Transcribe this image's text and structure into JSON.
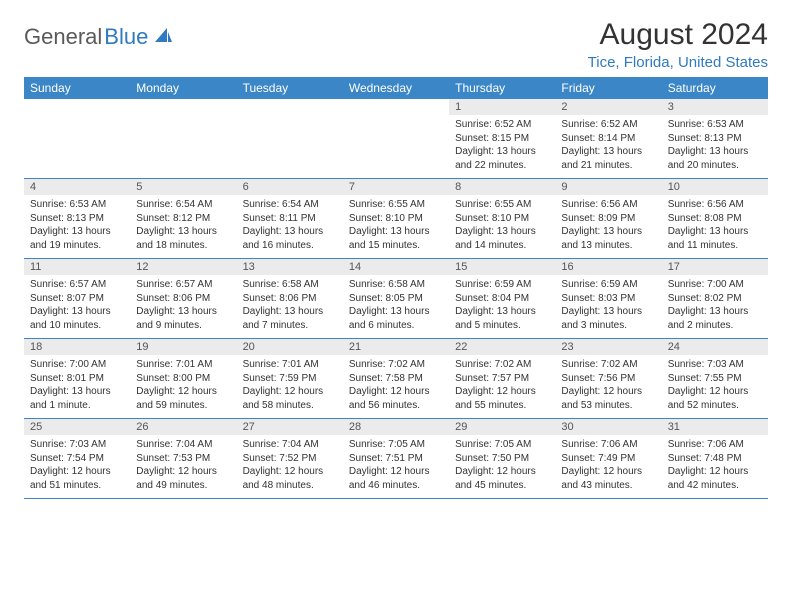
{
  "logo": {
    "text1": "General",
    "text2": "Blue"
  },
  "title": "August 2024",
  "location": "Tice, Florida, United States",
  "colors": {
    "header_bg": "#3b86c6",
    "header_text": "#ffffff",
    "accent": "#2f7ac0",
    "daynum_bg": "#ebebeb",
    "body_text": "#333333",
    "logo_gray": "#5a5a5a"
  },
  "weekdays": [
    "Sunday",
    "Monday",
    "Tuesday",
    "Wednesday",
    "Thursday",
    "Friday",
    "Saturday"
  ],
  "weeks": [
    [
      null,
      null,
      null,
      null,
      {
        "d": "1",
        "sr": "Sunrise: 6:52 AM",
        "ss": "Sunset: 8:15 PM",
        "dl1": "Daylight: 13 hours",
        "dl2": "and 22 minutes."
      },
      {
        "d": "2",
        "sr": "Sunrise: 6:52 AM",
        "ss": "Sunset: 8:14 PM",
        "dl1": "Daylight: 13 hours",
        "dl2": "and 21 minutes."
      },
      {
        "d": "3",
        "sr": "Sunrise: 6:53 AM",
        "ss": "Sunset: 8:13 PM",
        "dl1": "Daylight: 13 hours",
        "dl2": "and 20 minutes."
      }
    ],
    [
      {
        "d": "4",
        "sr": "Sunrise: 6:53 AM",
        "ss": "Sunset: 8:13 PM",
        "dl1": "Daylight: 13 hours",
        "dl2": "and 19 minutes."
      },
      {
        "d": "5",
        "sr": "Sunrise: 6:54 AM",
        "ss": "Sunset: 8:12 PM",
        "dl1": "Daylight: 13 hours",
        "dl2": "and 18 minutes."
      },
      {
        "d": "6",
        "sr": "Sunrise: 6:54 AM",
        "ss": "Sunset: 8:11 PM",
        "dl1": "Daylight: 13 hours",
        "dl2": "and 16 minutes."
      },
      {
        "d": "7",
        "sr": "Sunrise: 6:55 AM",
        "ss": "Sunset: 8:10 PM",
        "dl1": "Daylight: 13 hours",
        "dl2": "and 15 minutes."
      },
      {
        "d": "8",
        "sr": "Sunrise: 6:55 AM",
        "ss": "Sunset: 8:10 PM",
        "dl1": "Daylight: 13 hours",
        "dl2": "and 14 minutes."
      },
      {
        "d": "9",
        "sr": "Sunrise: 6:56 AM",
        "ss": "Sunset: 8:09 PM",
        "dl1": "Daylight: 13 hours",
        "dl2": "and 13 minutes."
      },
      {
        "d": "10",
        "sr": "Sunrise: 6:56 AM",
        "ss": "Sunset: 8:08 PM",
        "dl1": "Daylight: 13 hours",
        "dl2": "and 11 minutes."
      }
    ],
    [
      {
        "d": "11",
        "sr": "Sunrise: 6:57 AM",
        "ss": "Sunset: 8:07 PM",
        "dl1": "Daylight: 13 hours",
        "dl2": "and 10 minutes."
      },
      {
        "d": "12",
        "sr": "Sunrise: 6:57 AM",
        "ss": "Sunset: 8:06 PM",
        "dl1": "Daylight: 13 hours",
        "dl2": "and 9 minutes."
      },
      {
        "d": "13",
        "sr": "Sunrise: 6:58 AM",
        "ss": "Sunset: 8:06 PM",
        "dl1": "Daylight: 13 hours",
        "dl2": "and 7 minutes."
      },
      {
        "d": "14",
        "sr": "Sunrise: 6:58 AM",
        "ss": "Sunset: 8:05 PM",
        "dl1": "Daylight: 13 hours",
        "dl2": "and 6 minutes."
      },
      {
        "d": "15",
        "sr": "Sunrise: 6:59 AM",
        "ss": "Sunset: 8:04 PM",
        "dl1": "Daylight: 13 hours",
        "dl2": "and 5 minutes."
      },
      {
        "d": "16",
        "sr": "Sunrise: 6:59 AM",
        "ss": "Sunset: 8:03 PM",
        "dl1": "Daylight: 13 hours",
        "dl2": "and 3 minutes."
      },
      {
        "d": "17",
        "sr": "Sunrise: 7:00 AM",
        "ss": "Sunset: 8:02 PM",
        "dl1": "Daylight: 13 hours",
        "dl2": "and 2 minutes."
      }
    ],
    [
      {
        "d": "18",
        "sr": "Sunrise: 7:00 AM",
        "ss": "Sunset: 8:01 PM",
        "dl1": "Daylight: 13 hours",
        "dl2": "and 1 minute."
      },
      {
        "d": "19",
        "sr": "Sunrise: 7:01 AM",
        "ss": "Sunset: 8:00 PM",
        "dl1": "Daylight: 12 hours",
        "dl2": "and 59 minutes."
      },
      {
        "d": "20",
        "sr": "Sunrise: 7:01 AM",
        "ss": "Sunset: 7:59 PM",
        "dl1": "Daylight: 12 hours",
        "dl2": "and 58 minutes."
      },
      {
        "d": "21",
        "sr": "Sunrise: 7:02 AM",
        "ss": "Sunset: 7:58 PM",
        "dl1": "Daylight: 12 hours",
        "dl2": "and 56 minutes."
      },
      {
        "d": "22",
        "sr": "Sunrise: 7:02 AM",
        "ss": "Sunset: 7:57 PM",
        "dl1": "Daylight: 12 hours",
        "dl2": "and 55 minutes."
      },
      {
        "d": "23",
        "sr": "Sunrise: 7:02 AM",
        "ss": "Sunset: 7:56 PM",
        "dl1": "Daylight: 12 hours",
        "dl2": "and 53 minutes."
      },
      {
        "d": "24",
        "sr": "Sunrise: 7:03 AM",
        "ss": "Sunset: 7:55 PM",
        "dl1": "Daylight: 12 hours",
        "dl2": "and 52 minutes."
      }
    ],
    [
      {
        "d": "25",
        "sr": "Sunrise: 7:03 AM",
        "ss": "Sunset: 7:54 PM",
        "dl1": "Daylight: 12 hours",
        "dl2": "and 51 minutes."
      },
      {
        "d": "26",
        "sr": "Sunrise: 7:04 AM",
        "ss": "Sunset: 7:53 PM",
        "dl1": "Daylight: 12 hours",
        "dl2": "and 49 minutes."
      },
      {
        "d": "27",
        "sr": "Sunrise: 7:04 AM",
        "ss": "Sunset: 7:52 PM",
        "dl1": "Daylight: 12 hours",
        "dl2": "and 48 minutes."
      },
      {
        "d": "28",
        "sr": "Sunrise: 7:05 AM",
        "ss": "Sunset: 7:51 PM",
        "dl1": "Daylight: 12 hours",
        "dl2": "and 46 minutes."
      },
      {
        "d": "29",
        "sr": "Sunrise: 7:05 AM",
        "ss": "Sunset: 7:50 PM",
        "dl1": "Daylight: 12 hours",
        "dl2": "and 45 minutes."
      },
      {
        "d": "30",
        "sr": "Sunrise: 7:06 AM",
        "ss": "Sunset: 7:49 PM",
        "dl1": "Daylight: 12 hours",
        "dl2": "and 43 minutes."
      },
      {
        "d": "31",
        "sr": "Sunrise: 7:06 AM",
        "ss": "Sunset: 7:48 PM",
        "dl1": "Daylight: 12 hours",
        "dl2": "and 42 minutes."
      }
    ]
  ]
}
